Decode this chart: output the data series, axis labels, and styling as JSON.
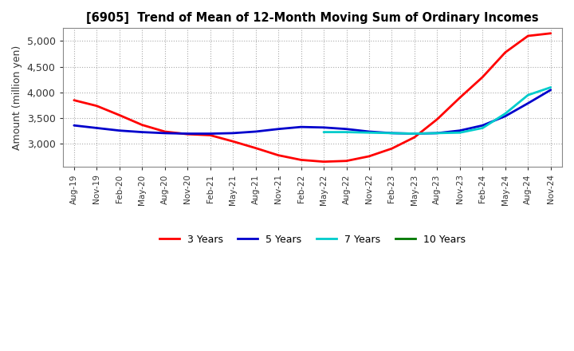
{
  "title": "[6905]  Trend of Mean of 12-Month Moving Sum of Ordinary Incomes",
  "ylabel": "Amount (million yen)",
  "background_color": "#ffffff",
  "grid_color": "#aaaaaa",
  "ylim": [
    2550,
    5250
  ],
  "yticks": [
    3000,
    3500,
    4000,
    4500,
    5000
  ],
  "x_labels": [
    "Aug-19",
    "Nov-19",
    "Feb-20",
    "May-20",
    "Aug-20",
    "Nov-20",
    "Feb-21",
    "May-21",
    "Aug-21",
    "Nov-21",
    "Feb-22",
    "May-22",
    "Aug-22",
    "Nov-22",
    "Feb-23",
    "May-23",
    "Aug-23",
    "Nov-23",
    "Feb-24",
    "May-24",
    "Aug-24",
    "Nov-24"
  ],
  "series": {
    "3 Years": {
      "color": "#ff0000",
      "values": [
        3850,
        3740,
        3560,
        3370,
        3240,
        3190,
        3170,
        3050,
        2920,
        2780,
        2690,
        2655,
        2670,
        2760,
        2910,
        3130,
        3480,
        3900,
        4300,
        4780,
        5100,
        5150
      ]
    },
    "5 Years": {
      "color": "#0000cc",
      "values": [
        3360,
        3310,
        3260,
        3230,
        3210,
        3200,
        3200,
        3210,
        3240,
        3290,
        3330,
        3320,
        3290,
        3240,
        3210,
        3200,
        3210,
        3260,
        3360,
        3540,
        3790,
        4050
      ]
    },
    "7 Years": {
      "color": "#00cccc",
      "values": [
        null,
        null,
        null,
        null,
        null,
        null,
        null,
        null,
        null,
        null,
        null,
        3230,
        3230,
        3220,
        3210,
        3200,
        3210,
        3220,
        3310,
        3590,
        3950,
        4100
      ]
    },
    "10 Years": {
      "color": "#007700",
      "values": [
        null,
        null,
        null,
        null,
        null,
        null,
        null,
        null,
        null,
        null,
        null,
        null,
        null,
        null,
        null,
        null,
        null,
        null,
        null,
        null,
        null,
        null
      ]
    }
  },
  "legend_labels": [
    "3 Years",
    "5 Years",
    "7 Years",
    "10 Years"
  ],
  "legend_colors": [
    "#ff0000",
    "#0000cc",
    "#00cccc",
    "#007700"
  ]
}
